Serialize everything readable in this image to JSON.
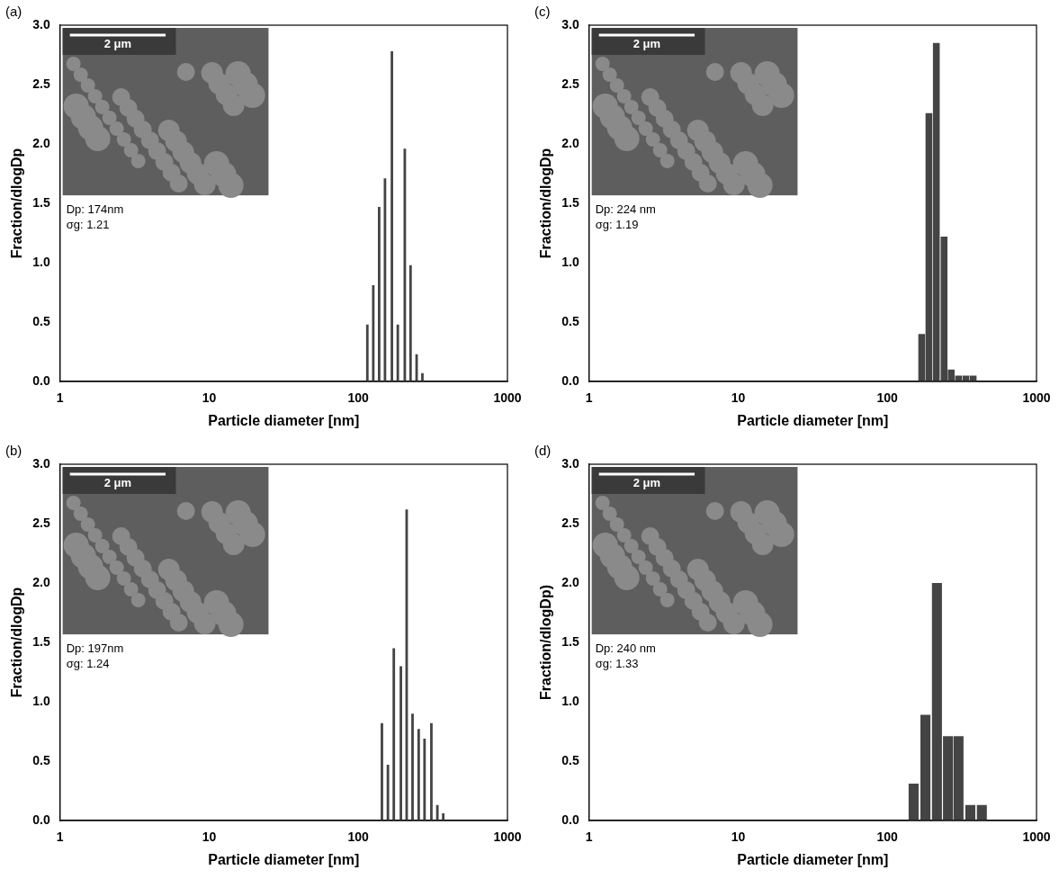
{
  "chart_data": [
    {
      "type": "bar",
      "panel_label": "(a)",
      "scale_bar": "2 μm",
      "annotations": [
        "Dp: 174nm",
        "σg: 1.21"
      ],
      "xlabel": "Particle diameter [nm]",
      "ylabel": "Fraction/dlogDp",
      "x": [
        115,
        126,
        138,
        151,
        168,
        184,
        205,
        224,
        246,
        269
      ],
      "values": [
        0.48,
        0.81,
        1.47,
        1.71,
        2.78,
        0.48,
        1.96,
        0.98,
        0.23,
        0.07
      ],
      "color": "#444444",
      "log": "x",
      "grid": false,
      "xlim": [
        1,
        1000
      ],
      "xticks": [
        1,
        10,
        100,
        1000
      ],
      "ylim": [
        0,
        3
      ],
      "yticks": [
        {
          "value": 0,
          "label": "0.0"
        },
        0.5,
        {
          "value": 1,
          "label": "1.0"
        },
        1.5,
        {
          "value": 2,
          "label": "2.0"
        },
        2.5,
        {
          "value": 3,
          "label": "3.0"
        }
      ]
    },
    {
      "type": "bar",
      "panel_label": "(c)",
      "scale_bar": "2 μm",
      "annotations": [
        "Dp: 224 nm",
        "σg: 1.19"
      ],
      "xlabel": "Particle diameter [nm]",
      "ylabel": "Fraction/dlogDp",
      "x": [
        170,
        190,
        213,
        240,
        268,
        300,
        336,
        376
      ],
      "values": [
        0.4,
        2.26,
        2.85,
        1.22,
        0.1,
        0.05,
        0.05,
        0.05
      ],
      "color": "#444444",
      "log": "x",
      "grid": false,
      "xlim": [
        1,
        1000
      ],
      "xticks": [
        1,
        10,
        100,
        1000
      ],
      "ylim": [
        0,
        3
      ],
      "yticks": [
        {
          "value": 0,
          "label": "0.0"
        },
        0.5,
        {
          "value": 1,
          "label": "1.0"
        },
        1.5,
        {
          "value": 2,
          "label": "2.0"
        },
        2.5,
        {
          "value": 3,
          "label": "3.0"
        }
      ]
    },
    {
      "type": "bar",
      "panel_label": "(b)",
      "scale_bar": "2 μm",
      "annotations": [
        "Dp: 197nm",
        "σg: 1.24"
      ],
      "xlabel": "Particle diameter [nm]",
      "ylabel": "Fraction/dlogDp",
      "x": [
        144,
        158,
        173,
        193,
        211,
        231,
        254,
        278,
        309,
        339,
        371
      ],
      "values": [
        0.82,
        0.47,
        1.45,
        1.3,
        2.62,
        0.9,
        0.77,
        0.69,
        0.82,
        0.13,
        0.06
      ],
      "color": "#444444",
      "log": "x",
      "grid": false,
      "xlim": [
        1,
        1000
      ],
      "xticks": [
        1,
        10,
        100,
        1000
      ],
      "ylim": [
        0,
        3
      ],
      "yticks": [
        {
          "value": 0,
          "label": "0.0"
        },
        0.5,
        {
          "value": 1,
          "label": "1.0"
        },
        1.5,
        {
          "value": 2,
          "label": "2.0"
        },
        2.5,
        {
          "value": 3,
          "label": "3.0"
        }
      ]
    },
    {
      "type": "bar",
      "panel_label": "(d)",
      "scale_bar": "2 μm",
      "annotations": [
        "Dp: 240 nm",
        "σg: 1.33"
      ],
      "xlabel": "Particle diameter [nm]",
      "ylabel": "Fraction/dlogDp)",
      "x": [
        150,
        180,
        215,
        255,
        300,
        360,
        430
      ],
      "values": [
        0.31,
        0.89,
        2.0,
        0.71,
        0.71,
        0.13,
        0.13
      ],
      "color": "#444444",
      "log": "x",
      "grid": false,
      "xlim": [
        1,
        1000
      ],
      "xticks": [
        1,
        10,
        100,
        1000
      ],
      "ylim": [
        0,
        3
      ],
      "yticks": [
        {
          "value": 0,
          "label": "0.0"
        },
        0.5,
        {
          "value": 1,
          "label": "1.0"
        },
        1.5,
        {
          "value": 2,
          "label": "2.0"
        },
        2.5,
        {
          "value": 3,
          "label": "3.0"
        }
      ]
    }
  ]
}
